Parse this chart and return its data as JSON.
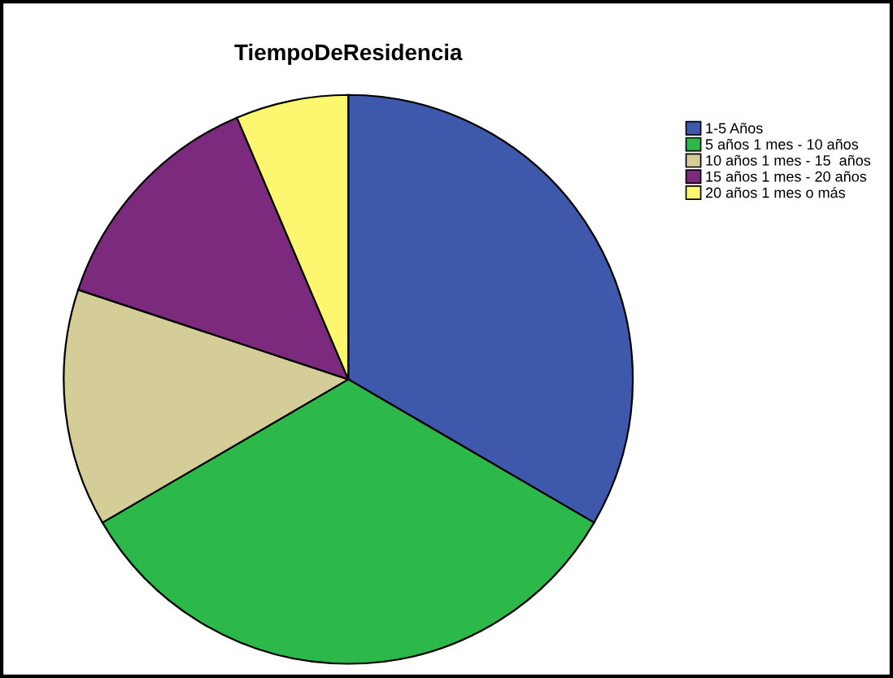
{
  "chart_data": {
    "type": "pie",
    "title": "TiempoDeResidencia",
    "categories": [
      "1-5 Años",
      "5 años 1 mes - 10 años",
      "10 años 1 mes - 15  años",
      "15 años 1 mes - 20 años",
      "20 años 1 mes o más"
    ],
    "values": [
      33.4,
      33.2,
      13.5,
      13.5,
      6.4
    ],
    "colors": [
      "#3e58ac",
      "#2db84a",
      "#d4cd97",
      "#7b2a7e",
      "#fcf76e"
    ],
    "legend": "top right"
  }
}
